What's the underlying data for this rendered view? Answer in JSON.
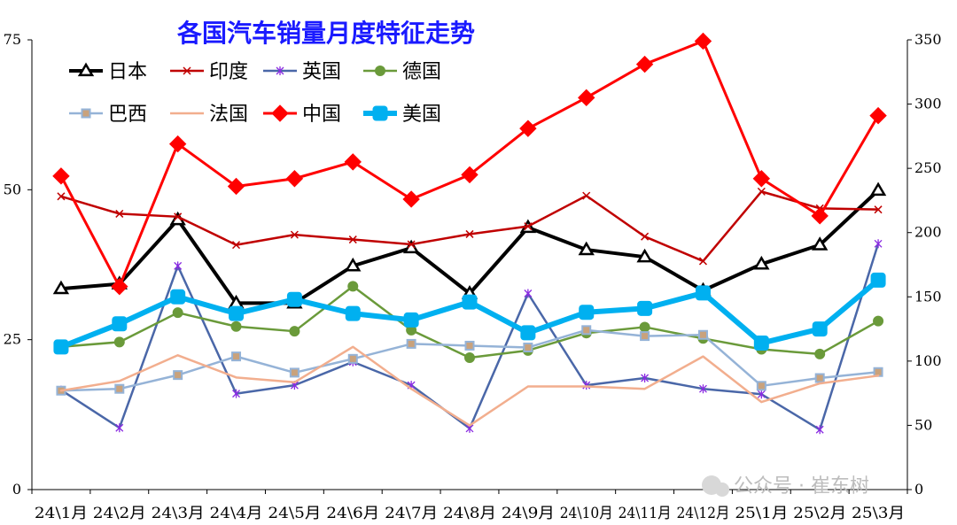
{
  "chart_data": {
    "type": "line",
    "title": "各国汽车销量月度特征走势",
    "categories": [
      "24\\1月",
      "24\\2月",
      "24\\3月",
      "24\\4月",
      "24\\5月",
      "24\\6月",
      "24\\7月",
      "24\\8月",
      "24\\9月",
      "24\\10月",
      "24\\11月",
      "24\\12月",
      "25\\1月",
      "25\\2月",
      "25\\3月"
    ],
    "y_left": {
      "min": 0,
      "max": 75,
      "ticks": [
        0,
        25,
        50,
        75
      ]
    },
    "y_right": {
      "min": 0,
      "max": 350,
      "ticks": [
        0,
        50,
        100,
        150,
        200,
        250,
        300,
        350
      ]
    },
    "legend_position": "top-left",
    "grid": false,
    "series": [
      {
        "name": "日本",
        "axis": "left",
        "color": "#000000",
        "marker": "triangle",
        "width": 4,
        "values": [
          33.5,
          34.3,
          45.0,
          31.1,
          31.1,
          37.3,
          40.3,
          32.7,
          43.7,
          40.0,
          38.8,
          33.2,
          37.6,
          40.8,
          49.9
        ]
      },
      {
        "name": "印度",
        "axis": "left",
        "color": "#c00000",
        "marker": "x",
        "width": 2.5,
        "values": [
          48.9,
          46.0,
          45.5,
          40.8,
          42.5,
          41.7,
          40.9,
          42.6,
          43.9,
          49.0,
          42.2,
          38.1,
          49.7,
          46.9,
          46.7
        ]
      },
      {
        "name": "英国",
        "axis": "left",
        "color": "#4a67a8",
        "marker": "star",
        "width": 2.5,
        "values": [
          16.6,
          10.3,
          37.3,
          16.0,
          17.4,
          21.3,
          17.4,
          10.2,
          32.7,
          17.4,
          18.6,
          16.8,
          15.9,
          10.0,
          41.0
        ]
      },
      {
        "name": "德国",
        "axis": "left",
        "color": "#6a9a3a",
        "marker": "circle",
        "width": 2.5,
        "values": [
          23.8,
          24.6,
          29.5,
          27.2,
          26.4,
          33.9,
          26.6,
          22.0,
          23.2,
          26.1,
          27.1,
          25.2,
          23.4,
          22.6,
          28.1
        ]
      },
      {
        "name": "巴西",
        "axis": "left",
        "color": "#95b3d7",
        "marker": "square",
        "width": 2.5,
        "values": [
          16.5,
          16.8,
          19.1,
          22.2,
          19.5,
          21.8,
          24.3,
          24.0,
          23.7,
          26.6,
          25.6,
          25.8,
          17.3,
          18.6,
          19.6
        ]
      },
      {
        "name": "法国",
        "axis": "left",
        "color": "#f2ae8e",
        "marker": "none",
        "width": 2.5,
        "values": [
          16.5,
          18.1,
          22.4,
          18.7,
          17.9,
          23.8,
          16.8,
          10.7,
          17.2,
          17.2,
          16.8,
          22.2,
          14.6,
          17.7,
          19.0
        ]
      },
      {
        "name": "中国",
        "axis": "right",
        "color": "#ff0000",
        "marker": "diamond",
        "width": 3,
        "values": [
          244,
          158,
          269,
          236,
          242,
          255,
          226,
          245,
          281,
          305,
          331,
          349,
          242,
          213,
          291
        ]
      },
      {
        "name": "美国",
        "axis": "right",
        "color": "#00b0f0",
        "marker": "square",
        "width": 6,
        "values": [
          111,
          129,
          150,
          137,
          148,
          137,
          132,
          146,
          122,
          138,
          141,
          153,
          114,
          125,
          163
        ]
      }
    ]
  },
  "watermark": "公众号 · 崔东树"
}
